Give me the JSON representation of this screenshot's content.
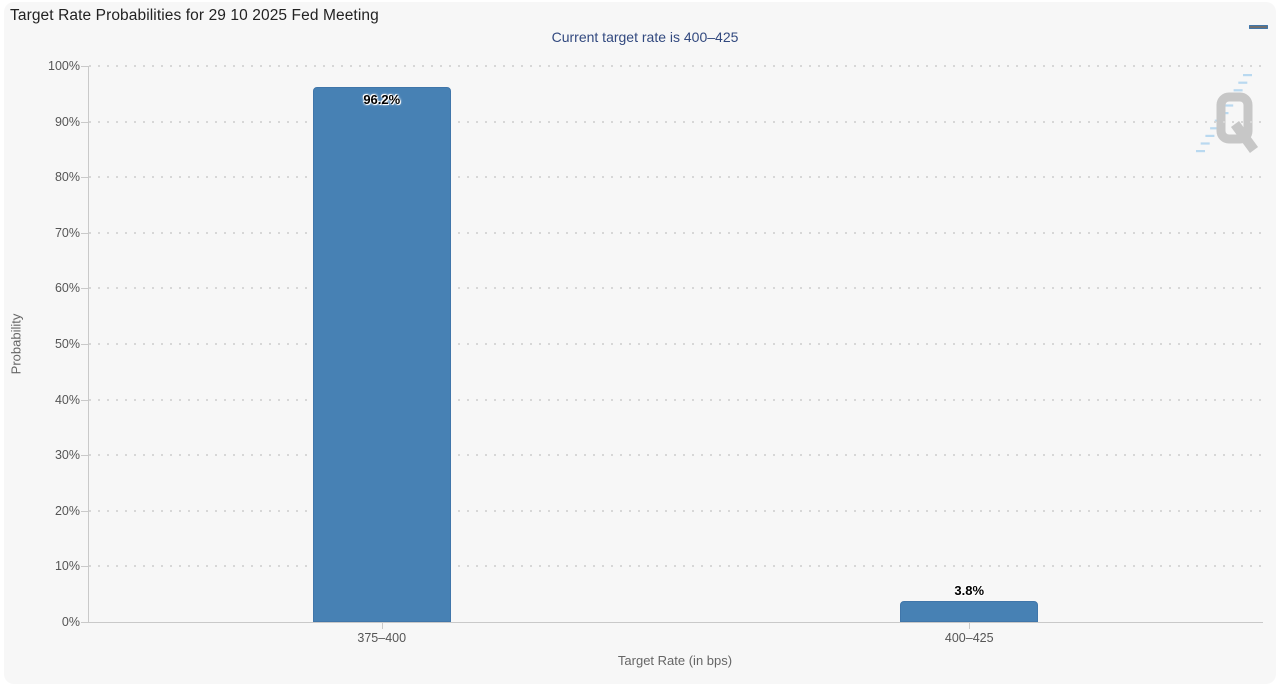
{
  "chart_data": {
    "type": "bar",
    "title": "Target Rate Probabilities for 29 10 2025 Fed Meeting",
    "subtitle": "Current target rate is 400–425",
    "categories": [
      "375–400",
      "400–425"
    ],
    "values": [
      96.2,
      3.8
    ],
    "data_labels": [
      "96.2%",
      "3.8%"
    ],
    "xlabel": "Target Rate (in bps)",
    "ylabel": "Probability",
    "ylim": [
      0,
      100
    ],
    "ytick_step": 10,
    "ytick_labels": [
      "0%",
      "10%",
      "20%",
      "30%",
      "40%",
      "50%",
      "60%",
      "70%",
      "80%",
      "90%",
      "100%"
    ],
    "grid": "horizontal-dotted",
    "legend": "none"
  },
  "colors": {
    "bar": "#4781b4",
    "bar_border": "#4076aa",
    "subtitle_text": "#32497f",
    "watermark_gray": "#c7c7c7",
    "watermark_blue": "#aed3ef"
  },
  "watermark": {
    "letter": "Q"
  }
}
